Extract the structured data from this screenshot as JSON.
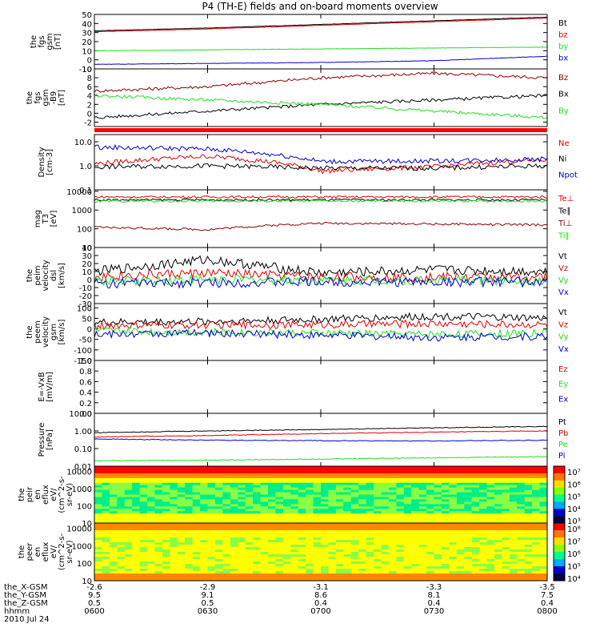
{
  "title": "P4 (TH-E) fields and on-board moments overview",
  "time_ticks": [
    "0600",
    "0630",
    "0700",
    "0730",
    "0800"
  ],
  "footer": {
    "rows": [
      {
        "label": "the_X-GSM",
        "values": [
          "-2.6",
          "-2.9",
          "-3.1",
          "-3.3",
          "-3.5"
        ]
      },
      {
        "label": "the_Y-GSM",
        "values": [
          "9.5",
          "9.1",
          "8.6",
          "8.1",
          "7.5"
        ]
      },
      {
        "label": "the_Z-GSM",
        "values": [
          "0.5",
          "0.5",
          "0.4",
          "0.4",
          "0.4"
        ]
      },
      {
        "label": "hhmm",
        "values": [
          "0600",
          "0630",
          "0700",
          "0730",
          "0800"
        ]
      }
    ],
    "date": "2010 Jul 24"
  },
  "colors": {
    "black": "#000000",
    "red": "#dd0000",
    "darkred": "#8b0000",
    "green": "#22dd22",
    "blue": "#0000cc",
    "flag": "#ff0000"
  },
  "panels": [
    {
      "id": "fgs",
      "ylabel": [
        "the",
        "fgs",
        "gsm",
        "[nT]"
      ],
      "ticks": [
        "50",
        "40",
        "30",
        "20",
        "10",
        "0",
        "-10"
      ],
      "ylim": [
        -10,
        50
      ],
      "legend": [
        {
          "text": "Bt",
          "color": "#000000"
        },
        {
          "text": "bz",
          "color": "#dd0000"
        },
        {
          "text": "by",
          "color": "#22dd22"
        },
        {
          "text": "bx",
          "color": "#0000cc"
        }
      ]
    },
    {
      "id": "fgl",
      "ylabel": [
        "the",
        "fgs",
        "gsm",
        "-B9",
        "[nT]"
      ],
      "ticks": [
        "10",
        "8",
        "6",
        "4",
        "2",
        "0",
        "-2"
      ],
      "ylim": [
        -3,
        10
      ],
      "legend": [
        {
          "text": "Bz",
          "color": "#8b0000"
        },
        {
          "text": "Bx",
          "color": "#000000"
        },
        {
          "text": "By",
          "color": "#22dd22"
        }
      ]
    },
    {
      "id": "density",
      "ylabel": [
        "Density",
        "[cm-3]"
      ],
      "ticks": [
        "10.0",
        "1.0",
        "0.1"
      ],
      "ylim": [
        0.1,
        20
      ],
      "scale": "log",
      "legend": [
        {
          "text": "Ne",
          "color": "#dd0000"
        },
        {
          "text": "Ni",
          "color": "#000000"
        },
        {
          "text": "Npot",
          "color": "#0000cc"
        }
      ]
    },
    {
      "id": "temp",
      "ylabel": [
        "mag",
        "T3",
        "[eV]"
      ],
      "ticks": [
        "10000",
        "1000",
        "100",
        "10"
      ],
      "ylim": [
        10,
        12000
      ],
      "scale": "log",
      "legend": [
        {
          "text": "Te⊥",
          "color": "#dd0000"
        },
        {
          "text": "Te∥",
          "color": "#000000"
        },
        {
          "text": "Ti⊥",
          "color": "#8b0000"
        },
        {
          "text": "Ti∥",
          "color": "#22dd22"
        }
      ]
    },
    {
      "id": "vel1",
      "ylabel": [
        "the",
        "peim",
        "velocity",
        "dsl",
        "[km/s]"
      ],
      "ticks": [
        "40",
        "30",
        "20",
        "10",
        "0",
        "-10",
        "-20",
        "-30"
      ],
      "ylim": [
        -30,
        40
      ],
      "legend": [
        {
          "text": "Vt",
          "color": "#000000"
        },
        {
          "text": "Vz",
          "color": "#dd0000"
        },
        {
          "text": "Vy",
          "color": "#22dd22"
        },
        {
          "text": "Vx",
          "color": "#0000cc"
        }
      ]
    },
    {
      "id": "vel2",
      "ylabel": [
        "the",
        "peem",
        "velocity",
        "gsm",
        "[km/s]"
      ],
      "ticks": [
        "100",
        "50",
        "0",
        "-50",
        "-100",
        "-150"
      ],
      "ylim": [
        -150,
        120
      ],
      "legend": [
        {
          "text": "Vt",
          "color": "#000000"
        },
        {
          "text": "Vz",
          "color": "#dd0000"
        },
        {
          "text": "Vy",
          "color": "#22dd22"
        },
        {
          "text": "Vx",
          "color": "#0000cc"
        }
      ]
    },
    {
      "id": "efield",
      "ylabel": [
        "E=-VxB",
        "[mV/m]"
      ],
      "ticks": [
        "1.0",
        "0.8",
        "0.6",
        "0.4",
        "0.2",
        "0.0"
      ],
      "ylim": [
        0,
        1
      ],
      "legend": [
        {
          "text": "Ez",
          "color": "#dd0000"
        },
        {
          "text": "Ey",
          "color": "#22dd22"
        },
        {
          "text": "Ex",
          "color": "#0000cc"
        }
      ]
    },
    {
      "id": "pressure",
      "ylabel": [
        "Pressure",
        "[nPa]"
      ],
      "ticks": [
        "10.00",
        "1.00",
        "0.10",
        "0.01"
      ],
      "ylim": [
        0.01,
        10
      ],
      "scale": "log",
      "legend": [
        {
          "text": "Pt",
          "color": "#000000"
        },
        {
          "text": "Pb",
          "color": "#dd0000"
        },
        {
          "text": "Pe",
          "color": "#22dd22"
        },
        {
          "text": "Pi",
          "color": "#0000cc"
        }
      ]
    },
    {
      "id": "ion_spec",
      "ylabel": [
        "the",
        "peir",
        "en",
        "eflux",
        "eV/",
        "(cm^2-s-",
        "sr-eV)"
      ],
      "ticks": [
        "10000",
        "1000",
        "100",
        "10"
      ],
      "colorbar": [
        "10⁷",
        "10⁶",
        "10⁵",
        "10⁴",
        "10³"
      ]
    },
    {
      "id": "ele_spec",
      "ylabel": [
        "the",
        "peer",
        "en",
        "eflux",
        "eV/",
        "(cm^2-s-",
        "sr-eV)"
      ],
      "ticks": [
        "10000",
        "1000",
        "100",
        "10"
      ],
      "colorbar": [
        "10⁸",
        "10⁷",
        "10⁶",
        "10⁵",
        "10⁴"
      ]
    }
  ],
  "chart_data": {
    "type": "line",
    "title": "P4 (TH-E) fields and on-board moments overview",
    "x": [
      "0600",
      "0630",
      "0700",
      "0730",
      "0800"
    ],
    "panels": [
      {
        "ylabel": "the fgs gsm [nT]",
        "ylim": [
          -10,
          50
        ],
        "series": [
          {
            "name": "Bt",
            "values": [
              32,
              35,
              39,
              43,
              47
            ]
          },
          {
            "name": "bz",
            "values": [
              31,
              34,
              38,
              42,
              46
            ]
          },
          {
            "name": "by",
            "values": [
              10,
              11,
              12,
              13,
              14
            ]
          },
          {
            "name": "bx",
            "values": [
              -5,
              -4,
              -3,
              -1,
              4
            ]
          }
        ]
      },
      {
        "ylabel": "the fgs gsm -B9 [nT]",
        "ylim": [
          -3,
          10
        ],
        "series": [
          {
            "name": "Bz",
            "values": [
              5,
              6,
              8,
              9,
              8
            ]
          },
          {
            "name": "Bx",
            "values": [
              -1,
              0.5,
              2,
              3,
              4
            ]
          },
          {
            "name": "By",
            "values": [
              4,
              3,
              2,
              0.5,
              -1
            ]
          }
        ]
      },
      {
        "ylabel": "Density [cm-3]",
        "ylim": [
          0.1,
          20
        ],
        "scale": "log",
        "series": [
          {
            "name": "Ne",
            "values": [
              1.2,
              2.5,
              0.6,
              0.9,
              1.8
            ]
          },
          {
            "name": "Ni",
            "values": [
              0.9,
              1.0,
              0.8,
              0.8,
              1.0
            ]
          },
          {
            "name": "Npot",
            "values": [
              6,
              5,
              1.5,
              1.6,
              1.9
            ]
          }
        ]
      },
      {
        "ylabel": "mag T3 [eV]",
        "ylim": [
          10,
          12000
        ],
        "scale": "log",
        "series": [
          {
            "name": "Te⊥",
            "values": [
              5000,
              5000,
              5000,
              5000,
              5000
            ]
          },
          {
            "name": "Te∥",
            "values": [
              3500,
              3500,
              3500,
              3500,
              3500
            ]
          },
          {
            "name": "Ti⊥",
            "values": [
              120,
              90,
              200,
              180,
              160
            ]
          },
          {
            "name": "Ti∥",
            "values": [
              3000,
              3000,
              3000,
              3000,
              3000
            ]
          }
        ]
      },
      {
        "ylabel": "the peim velocity dsl [km/s]",
        "ylim": [
          -30,
          40
        ],
        "series": [
          {
            "name": "Vt",
            "values": [
              10,
              25,
              8,
              12,
              10
            ]
          },
          {
            "name": "Vz",
            "values": [
              4,
              8,
              3,
              3,
              3
            ]
          },
          {
            "name": "Vy",
            "values": [
              -2,
              0,
              -1,
              -1,
              -1
            ]
          },
          {
            "name": "Vx",
            "values": [
              -5,
              -4,
              -3,
              -3,
              -3
            ]
          }
        ]
      },
      {
        "ylabel": "the peem velocity gsm [km/s]",
        "ylim": [
          -150,
          120
        ],
        "series": [
          {
            "name": "Vt",
            "values": [
              30,
              35,
              45,
              60,
              50
            ]
          },
          {
            "name": "Vz",
            "values": [
              15,
              18,
              20,
              25,
              20
            ]
          },
          {
            "name": "Vy",
            "values": [
              -10,
              -15,
              -20,
              -25,
              -20
            ]
          },
          {
            "name": "Vx",
            "values": [
              -25,
              -20,
              -30,
              -40,
              -35
            ]
          }
        ]
      },
      {
        "ylabel": "E=-VxB [mV/m]",
        "ylim": [
          0,
          1
        ],
        "series": []
      },
      {
        "ylabel": "Pressure [nPa]",
        "ylim": [
          0.01,
          10
        ],
        "scale": "log",
        "series": [
          {
            "name": "Pt",
            "values": [
              0.8,
              1.0,
              1.2,
              1.5,
              1.8
            ]
          },
          {
            "name": "Pb",
            "values": [
              0.45,
              0.55,
              0.7,
              0.85,
              1.0
            ]
          },
          {
            "name": "Pe",
            "values": [
              0.02,
              0.022,
              0.025,
              0.03,
              0.035
            ]
          },
          {
            "name": "Pi",
            "values": [
              0.35,
              0.3,
              0.28,
              0.27,
              0.3
            ]
          }
        ]
      }
    ]
  }
}
